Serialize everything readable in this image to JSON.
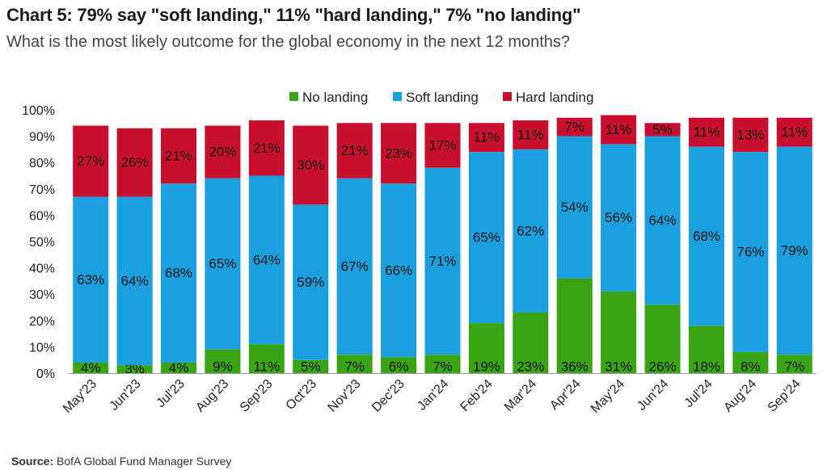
{
  "header": {
    "title": "Chart 5: 79% say \"soft landing,\" 11% \"hard landing,\" 7% \"no landing\"",
    "subtitle": "What is the most likely outcome for the global economy in the next 12 months?"
  },
  "footer": {
    "source_label": "Source:",
    "source_text": "BofA Global Fund Manager Survey"
  },
  "chart_data": {
    "type": "bar",
    "stacked": true,
    "categories": [
      "May'23",
      "Jun'23",
      "Jul'23",
      "Aug'23",
      "Sep'23",
      "Oct'23",
      "Nov'23",
      "Dec'23",
      "Jan'24",
      "Feb'24",
      "Mar'24",
      "Apr'24",
      "May'24",
      "Jun'24",
      "Jul'24",
      "Aug'24",
      "Sep'24"
    ],
    "series": [
      {
        "name": "No landing",
        "color": "#3aa514",
        "label_color": "#ffffff",
        "values": [
          4,
          3,
          4,
          9,
          11,
          5,
          7,
          6,
          7,
          19,
          23,
          36,
          31,
          26,
          18,
          8,
          7
        ]
      },
      {
        "name": "Soft landing",
        "color": "#1aa0de",
        "label_color": "#111111",
        "values": [
          63,
          64,
          68,
          65,
          64,
          59,
          67,
          66,
          71,
          65,
          62,
          54,
          56,
          64,
          68,
          76,
          79
        ]
      },
      {
        "name": "Hard landing",
        "color": "#c8102e",
        "label_color": "#ffffff",
        "values": [
          27,
          26,
          21,
          20,
          21,
          30,
          21,
          23,
          17,
          11,
          11,
          7,
          11,
          5,
          11,
          13,
          11
        ]
      }
    ],
    "ylim": [
      0,
      100
    ],
    "yticks": [
      "0%",
      "10%",
      "20%",
      "30%",
      "40%",
      "50%",
      "60%",
      "70%",
      "80%",
      "90%",
      "100%"
    ],
    "legend_position": "top-center",
    "grid": false
  }
}
